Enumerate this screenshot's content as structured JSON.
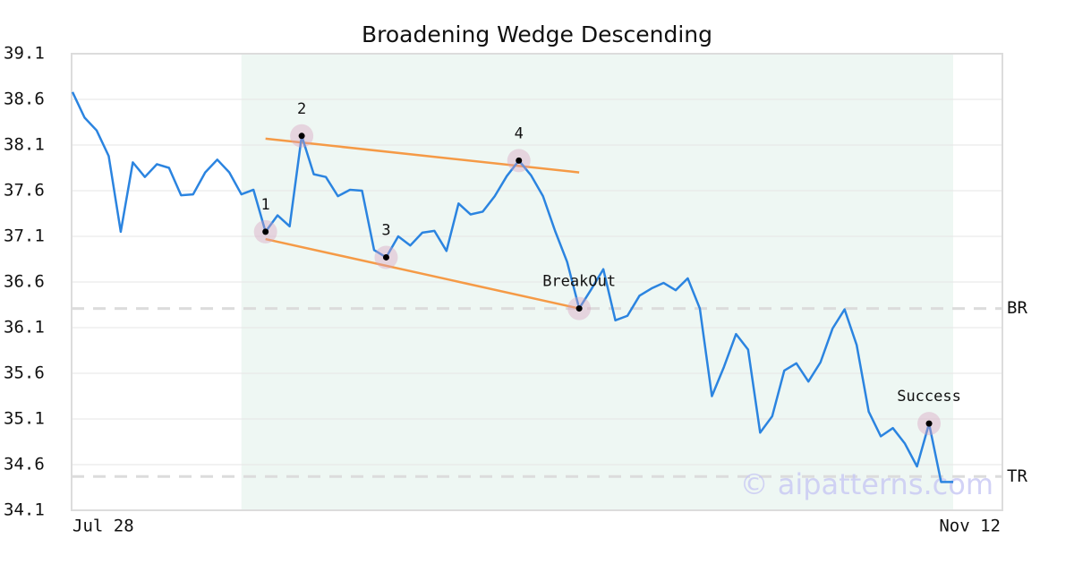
{
  "chart_data": {
    "type": "line",
    "title": "Broadening Wedge Descending",
    "categories": [
      "Jul 28",
      null,
      null,
      null,
      null,
      null,
      null,
      null,
      null,
      null,
      null,
      null,
      null,
      null,
      null,
      null,
      null,
      null,
      null,
      null,
      null,
      null,
      null,
      null,
      null,
      null,
      null,
      null,
      null,
      null,
      null,
      null,
      null,
      null,
      null,
      null,
      null,
      null,
      null,
      null,
      null,
      null,
      null,
      null,
      null,
      null,
      null,
      null,
      null,
      null,
      null,
      null,
      null,
      null,
      null,
      null,
      null,
      null,
      null,
      null,
      null,
      null,
      null,
      null,
      null,
      null,
      null,
      null,
      null,
      null,
      null,
      null,
      null,
      "Nov 12"
    ],
    "series": [
      {
        "color": "#2b84e0",
        "values": [
          38.68,
          38.4,
          38.26,
          37.98,
          37.15,
          37.91,
          37.75,
          37.89,
          37.85,
          37.55,
          37.56,
          37.8,
          37.94,
          37.8,
          37.56,
          37.61,
          37.15,
          37.33,
          37.21,
          38.2,
          37.78,
          37.75,
          37.54,
          37.61,
          37.6,
          36.95,
          36.87,
          37.1,
          37.0,
          37.14,
          37.16,
          36.94,
          37.46,
          37.34,
          37.37,
          37.54,
          37.76,
          37.93,
          37.77,
          37.54,
          37.16,
          36.82,
          36.31,
          36.52,
          36.74,
          36.18,
          36.23,
          36.45,
          36.53,
          36.59,
          36.51,
          36.64,
          36.31,
          35.35,
          35.67,
          36.03,
          35.86,
          34.95,
          35.13,
          35.63,
          35.71,
          35.51,
          35.72,
          36.09,
          36.3,
          35.91,
          35.18,
          34.91,
          35.0,
          34.83,
          34.58,
          35.05,
          34.41,
          34.41
        ]
      }
    ],
    "ylim": [
      34.1,
      39.1
    ],
    "yticks": [
      34.1,
      34.6,
      35.1,
      35.6,
      36.1,
      36.6,
      37.1,
      37.6,
      38.1,
      38.6,
      39.1
    ],
    "grid": true,
    "highlight_range": [
      14,
      73
    ],
    "trend_lines": [
      {
        "color": "#f59a46",
        "from": [
          16,
          38.17
        ],
        "to": [
          42,
          37.8
        ]
      },
      {
        "color": "#f59a46",
        "from": [
          16,
          37.07
        ],
        "to": [
          42,
          36.31
        ]
      }
    ],
    "points": [
      {
        "label": "1",
        "index": 16
      },
      {
        "label": "2",
        "index": 19
      },
      {
        "label": "3",
        "index": 26
      },
      {
        "label": "4",
        "index": 37
      },
      {
        "label": "BreakOut",
        "index": 42
      },
      {
        "label": "Success",
        "index": 71
      }
    ],
    "levels": [
      {
        "label": "BR",
        "value": 36.31
      },
      {
        "label": "TR",
        "value": 34.47
      }
    ],
    "watermark": "© aipatterns.com"
  }
}
